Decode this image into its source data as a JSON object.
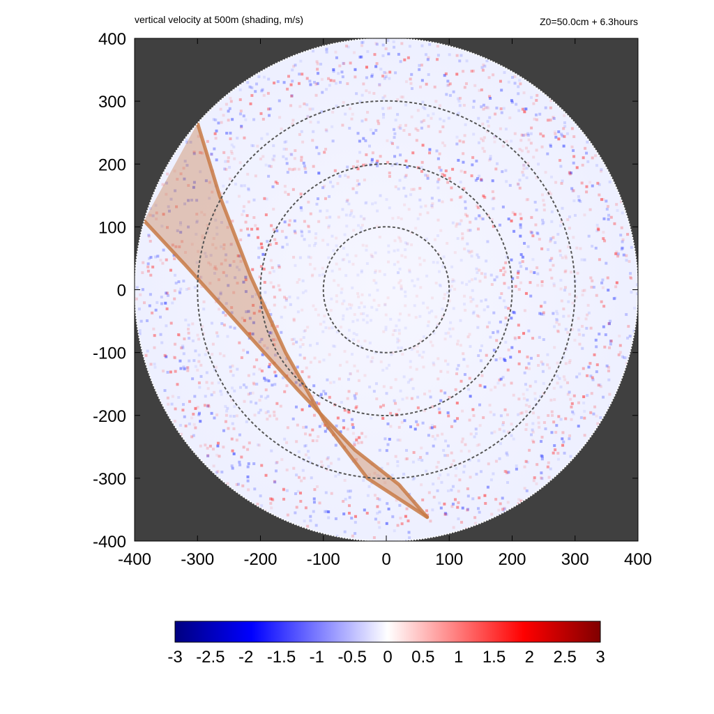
{
  "header": {
    "left": "vertical velocity at 500m (shading, m/s)",
    "right": "Z0=50.0cm  + 6.3hours"
  },
  "chart_data": {
    "type": "heatmap",
    "title": "vertical velocity at 500m (shading, m/s)",
    "annotation": "Z0=50.0cm  + 6.3hours",
    "xlabel": "",
    "ylabel": "",
    "xlim": [
      -400,
      400
    ],
    "ylim": [
      -400,
      400
    ],
    "x_ticks": [
      -400,
      -300,
      -200,
      -100,
      0,
      100,
      200,
      300,
      400
    ],
    "y_ticks": [
      -400,
      -300,
      -200,
      -100,
      0,
      100,
      200,
      300,
      400
    ],
    "x_tick_labels": [
      "-400",
      "-300",
      "-200",
      "-100",
      "0",
      "100",
      "200",
      "300",
      "400"
    ],
    "y_tick_labels": [
      "400",
      "300",
      "200",
      "100",
      "0",
      "-100",
      "-200",
      "-300",
      "-400"
    ],
    "domain_radius": 400,
    "outside_domain_color": "#404040",
    "dashed_circle_radii": [
      100,
      200,
      300
    ],
    "dashed_circle_color": "#555555",
    "overlay_wedge": {
      "color": "#c87a45",
      "outer_edge_1": [
        [
          -300,
          265
        ],
        [
          -265,
          150
        ],
        [
          -215,
          20
        ],
        [
          -160,
          -100
        ],
        [
          -95,
          -215
        ],
        [
          -30,
          -300
        ],
        [
          65,
          -362
        ]
      ],
      "outer_edge_2": [
        [
          -385,
          110
        ],
        [
          -320,
          40
        ],
        [
          -230,
          -60
        ],
        [
          -140,
          -160
        ],
        [
          -50,
          -255
        ],
        [
          20,
          -310
        ],
        [
          65,
          -362
        ]
      ]
    },
    "colorbar": {
      "min": -3,
      "max": 3,
      "ticks": [
        -3,
        -2.5,
        -2,
        -1.5,
        -1,
        -0.5,
        0,
        0.5,
        1,
        1.5,
        2,
        2.5,
        3
      ],
      "tick_labels": [
        "-3",
        "-2.5",
        "-2",
        "-1.5",
        "-1",
        "-0.5",
        "0",
        "0.5",
        "1",
        "1.5",
        "2",
        "2.5",
        "3"
      ],
      "colors": [
        "#000080",
        "#0000ff",
        "#ffffff",
        "#ff0000",
        "#800000"
      ],
      "units": "m/s"
    },
    "grid": false,
    "legend": "colorbar-bottom"
  }
}
